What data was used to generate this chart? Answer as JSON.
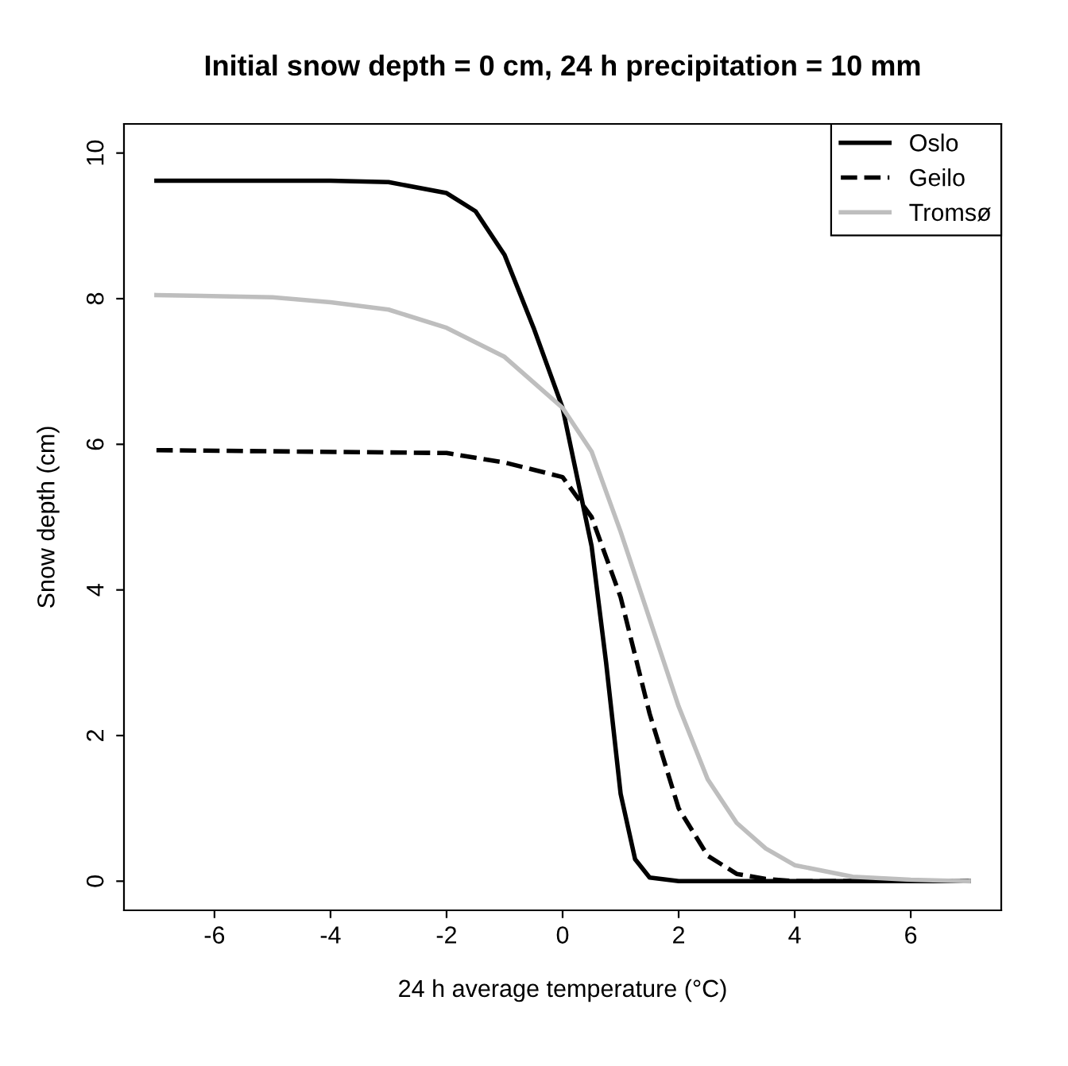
{
  "chart_data": {
    "type": "line",
    "title": "Initial snow depth = 0 cm, 24 h precipitation = 10 mm",
    "xlabel": "24 h average temperature (°C)",
    "ylabel": "Snow depth (cm)",
    "xlim": [
      -7.56,
      7.56
    ],
    "ylim": [
      -0.4,
      10.4
    ],
    "xticks": [
      -6,
      -4,
      -2,
      0,
      2,
      4,
      6
    ],
    "yticks": [
      0,
      2,
      4,
      6,
      8,
      10
    ],
    "grid": false,
    "legend": "top right",
    "series": [
      {
        "name": "Oslo",
        "color": "#000000",
        "line_style": "solid",
        "x": [
          -7,
          -4,
          -3,
          -2,
          -1.5,
          -1,
          -0.5,
          0,
          0.5,
          0.75,
          1,
          1.25,
          1.5,
          2,
          7
        ],
        "values": [
          9.62,
          9.62,
          9.6,
          9.45,
          9.2,
          8.6,
          7.6,
          6.5,
          4.6,
          3.0,
          1.2,
          0.3,
          0.05,
          0,
          0
        ]
      },
      {
        "name": "Geilo",
        "color": "#000000",
        "line_style": "dashed",
        "x": [
          -7,
          -2,
          -1,
          0,
          0.5,
          1,
          1.5,
          2,
          2.5,
          3,
          3.5,
          4,
          7
        ],
        "values": [
          5.92,
          5.88,
          5.75,
          5.55,
          5.0,
          3.9,
          2.3,
          1.0,
          0.35,
          0.1,
          0.03,
          0,
          0
        ]
      },
      {
        "name": "Tromsø",
        "color": "#bebebe",
        "line_style": "solid",
        "x": [
          -7,
          -5,
          -4,
          -3,
          -2,
          -1,
          0,
          0.5,
          1,
          1.5,
          2,
          2.5,
          3,
          3.5,
          4,
          5,
          6,
          7
        ],
        "values": [
          8.05,
          8.02,
          7.95,
          7.85,
          7.6,
          7.2,
          6.5,
          5.9,
          4.8,
          3.6,
          2.4,
          1.4,
          0.8,
          0.45,
          0.22,
          0.06,
          0.02,
          0
        ]
      }
    ]
  }
}
